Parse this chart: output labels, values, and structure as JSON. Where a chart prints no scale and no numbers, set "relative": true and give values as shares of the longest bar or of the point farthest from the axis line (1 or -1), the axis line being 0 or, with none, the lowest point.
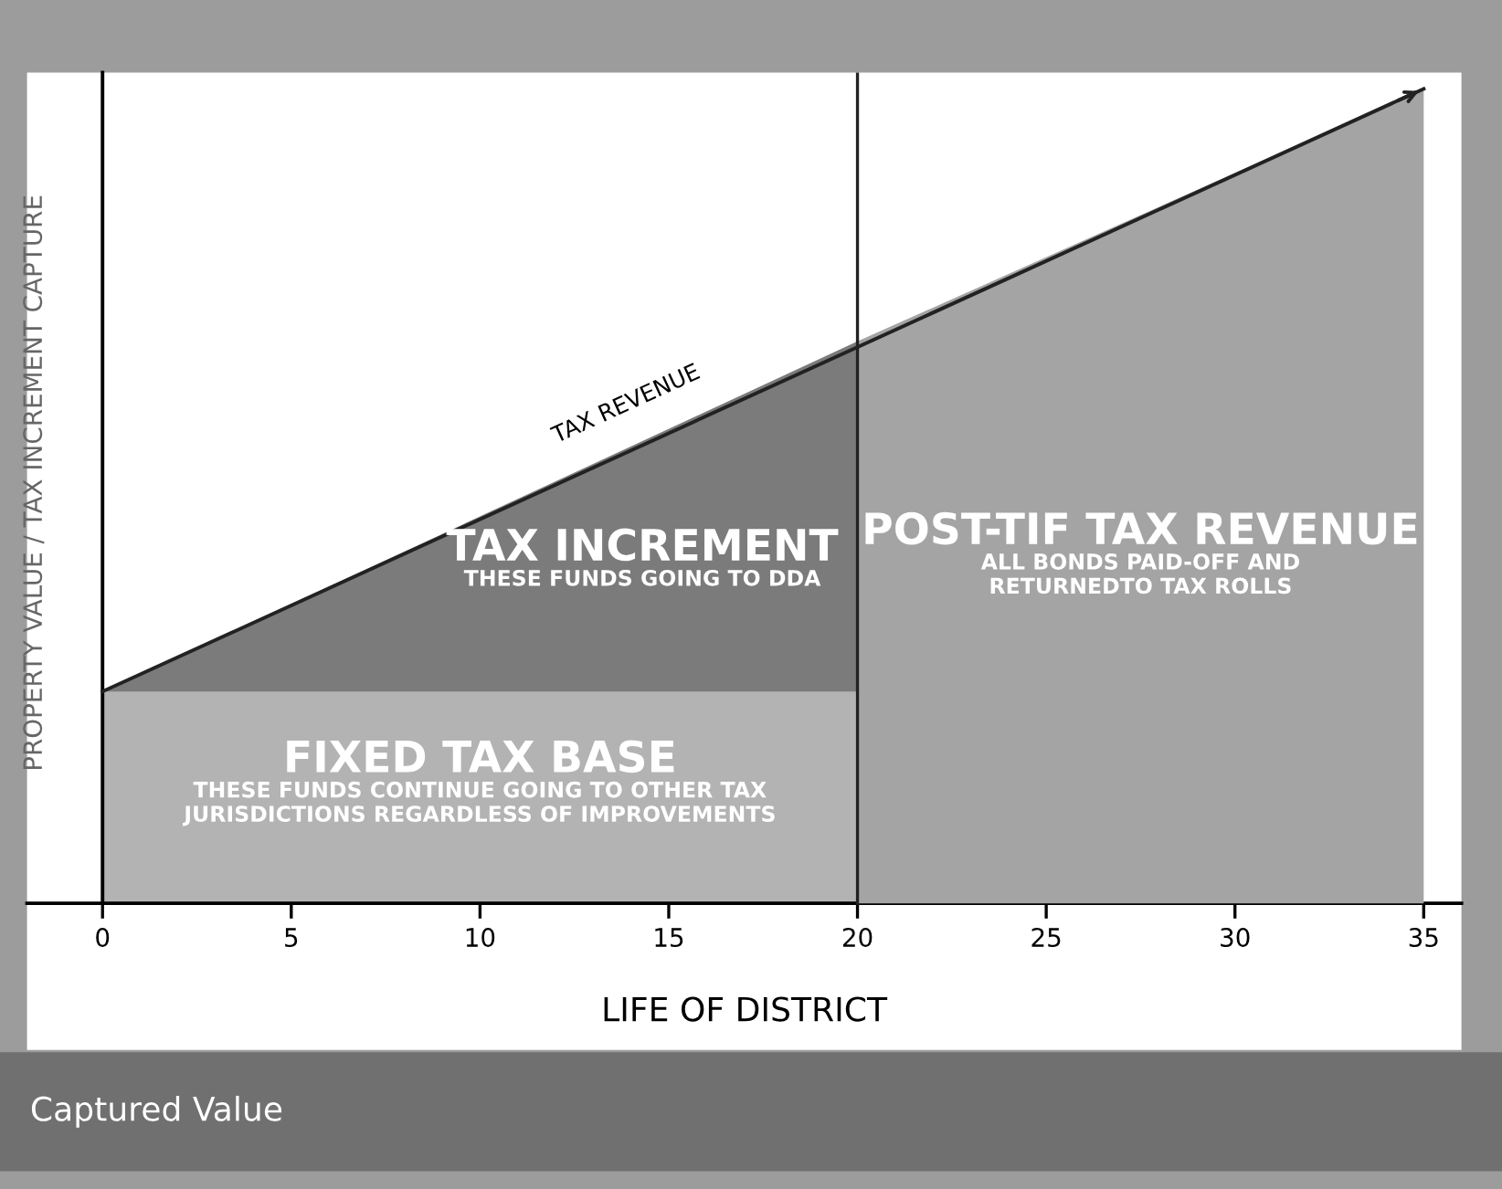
{
  "chart_data": {
    "type": "area",
    "title": "Captured Value",
    "xlabel": "LIFE OF DISTRICT",
    "ylabel": "PROPERTY VALUE / TAX INCREMENT CAPTURE",
    "relative": true,
    "xlim": [
      -2,
      36
    ],
    "xticks": [
      0,
      5,
      10,
      15,
      20,
      25,
      30,
      35
    ],
    "grid": false,
    "series": [
      {
        "color": "#7b7b7b",
        "x": [
          0,
          20
        ],
        "values": [
          0.26,
          0.69
        ]
      },
      {
        "color": "#b3b3b3",
        "x": [
          0,
          20
        ],
        "values": [
          0.26,
          0.26
        ]
      },
      {
        "color": "#a4a4a4",
        "x": [
          20,
          35
        ],
        "values": [
          0.69,
          1.0
        ]
      },
      {
        "type": "line",
        "color": "#222222",
        "x": [
          0,
          35
        ],
        "values": [
          0.26,
          1.0
        ]
      }
    ],
    "ref_lines": [
      {
        "axis": "x",
        "value": 20,
        "color": "#222222"
      }
    ],
    "annotations": [
      "TAX REVENUE",
      "TAX INCREMENT\nTHESE FUNDS GOING TO DDA",
      "FIXED TAX BASE\nTHESE FUNDS CONTINUE GOING TO OTHER TAX\nJURISDICTIONS REGARDLESS OF IMPROVEMENTS",
      "POST-TIF TAX REVENUE\nALL BONDS PAID-OFF AND\nRETURNEDTO TAX ROLLS"
    ]
  }
}
